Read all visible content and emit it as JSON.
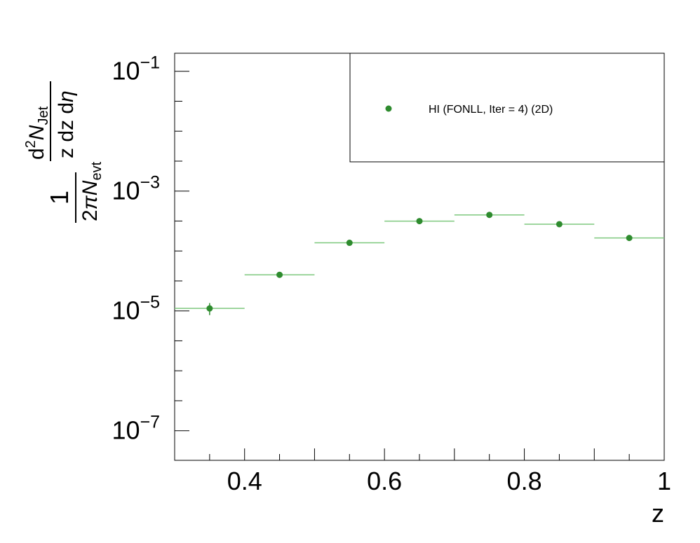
{
  "chart_data": {
    "type": "scatter",
    "title": "",
    "xlabel": "z",
    "ylabel": {
      "prefix": "1",
      "denom_prefix": "2",
      "pi": "π",
      "N": "N",
      "evt_sub": "evt",
      "numer_d": "d",
      "numer_sup": "2",
      "jet_sub": "Jet",
      "denom": "z dz d",
      "eta": "η"
    },
    "xlim": [
      0.3,
      1.0
    ],
    "ylim": [
      3.2e-08,
      0.2
    ],
    "log_y": true,
    "grid": false,
    "x_ticks": [
      {
        "value": 0.4,
        "label": "0.4"
      },
      {
        "value": 0.6,
        "label": "0.6"
      },
      {
        "value": 0.8,
        "label": "0.8"
      },
      {
        "value": 1.0,
        "label": "1"
      }
    ],
    "y_ticks": [
      {
        "value": 0.1,
        "base": "10",
        "exp": "−1"
      },
      {
        "value": 0.001,
        "base": "10",
        "exp": "−3"
      },
      {
        "value": 1e-05,
        "base": "10",
        "exp": "−5"
      },
      {
        "value": 1e-07,
        "base": "10",
        "exp": "−7"
      }
    ],
    "series": [
      {
        "name": "HI (FONLL, Iter = 4) (2D)",
        "color": "#2e8b2e",
        "line_color": "#7ec87e",
        "points": [
          {
            "x": 0.35,
            "xlo": 0.3,
            "xhi": 0.4,
            "y": 1.1e-05,
            "yerr_lo": 2.5e-06,
            "yerr_hi": 2.5e-06
          },
          {
            "x": 0.45,
            "xlo": 0.4,
            "xhi": 0.5,
            "y": 4e-05,
            "yerr_lo": 2e-06,
            "yerr_hi": 2e-06
          },
          {
            "x": 0.55,
            "xlo": 0.5,
            "xhi": 0.6,
            "y": 0.000137,
            "yerr_lo": 5e-06,
            "yerr_hi": 5e-06
          },
          {
            "x": 0.65,
            "xlo": 0.6,
            "xhi": 0.7,
            "y": 0.000315,
            "yerr_lo": 8e-06,
            "yerr_hi": 8e-06
          },
          {
            "x": 0.75,
            "xlo": 0.7,
            "xhi": 0.8,
            "y": 0.0004,
            "yerr_lo": 1e-05,
            "yerr_hi": 1e-05
          },
          {
            "x": 0.85,
            "xlo": 0.8,
            "xhi": 0.9,
            "y": 0.00028,
            "yerr_lo": 1e-05,
            "yerr_hi": 1e-05
          },
          {
            "x": 0.95,
            "xlo": 0.9,
            "xhi": 1.0,
            "y": 0.000165,
            "yerr_lo": 1.5e-05,
            "yerr_hi": 1.5e-05
          }
        ]
      }
    ],
    "legend": {
      "position": "top-right"
    }
  }
}
